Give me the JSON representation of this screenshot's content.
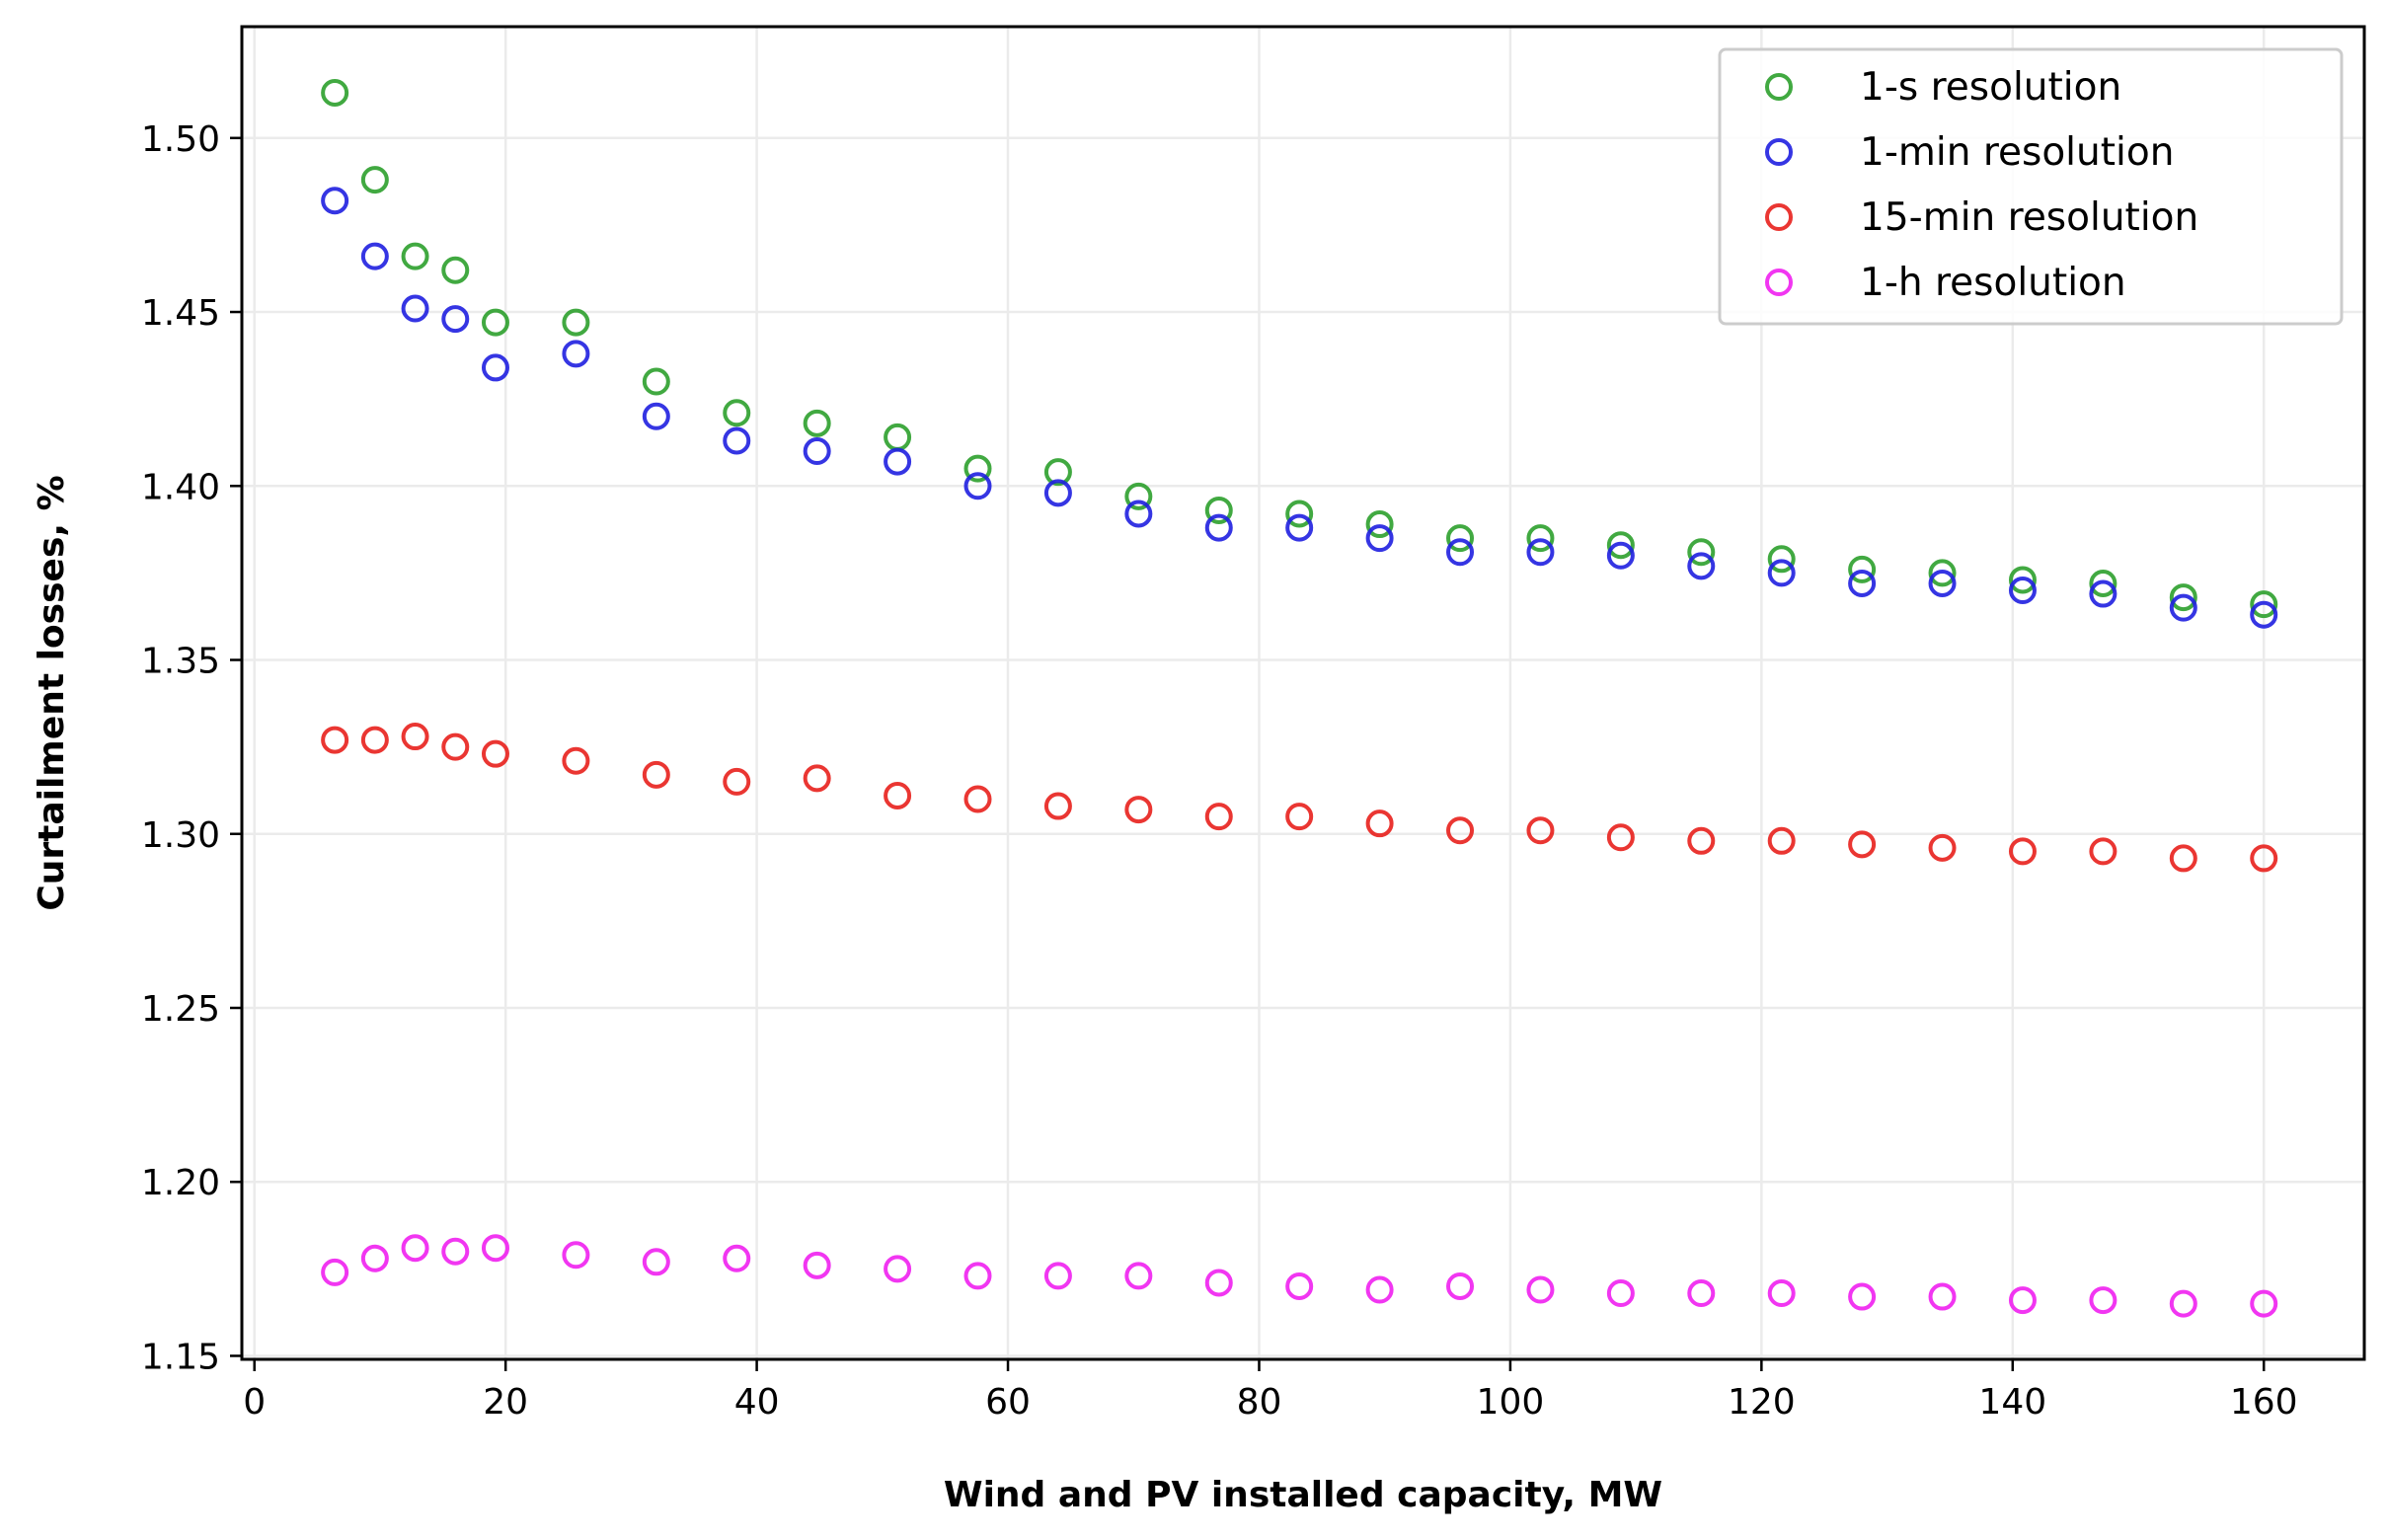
{
  "chart_data": {
    "type": "scatter",
    "title": "",
    "xlabel": "Wind and PV installed capacity, MW",
    "ylabel": "Curtailment losses, %",
    "xlim": [
      -1,
      168
    ],
    "ylim": [
      1.149,
      1.532
    ],
    "grid": true,
    "legend_position": "top-right",
    "xticks": [
      0,
      20,
      40,
      60,
      80,
      100,
      120,
      140,
      160
    ],
    "xtick_labels": [
      "0",
      "20",
      "40",
      "60",
      "80",
      "100",
      "120",
      "140",
      "160"
    ],
    "yticks": [
      1.15,
      1.2,
      1.25,
      1.3,
      1.35,
      1.4,
      1.45,
      1.5
    ],
    "ytick_labels": [
      "1.15",
      "1.20",
      "1.25",
      "1.30",
      "1.35",
      "1.40",
      "1.45",
      "1.50"
    ],
    "x": [
      6.4,
      9.6,
      12.8,
      16,
      19.2,
      25.6,
      32,
      38.4,
      44.8,
      51.2,
      57.6,
      64,
      70.4,
      76.8,
      83.2,
      89.6,
      96,
      102.4,
      108.8,
      115.2,
      121.6,
      128,
      134.4,
      140.8,
      147.2,
      153.6,
      160
    ],
    "series": [
      {
        "name": "1-s resolution",
        "color": "#2ca02c",
        "values": [
          1.513,
          1.488,
          1.466,
          1.462,
          1.447,
          1.447,
          1.43,
          1.421,
          1.418,
          1.414,
          1.405,
          1.404,
          1.397,
          1.393,
          1.392,
          1.389,
          1.385,
          1.385,
          1.383,
          1.381,
          1.379,
          1.376,
          1.375,
          1.373,
          1.372,
          1.368,
          1.366
        ]
      },
      {
        "name": "1-min resolution",
        "color": "#1f1fe0",
        "values": [
          1.482,
          1.466,
          1.451,
          1.448,
          1.434,
          1.438,
          1.42,
          1.413,
          1.41,
          1.407,
          1.4,
          1.398,
          1.392,
          1.388,
          1.388,
          1.385,
          1.381,
          1.381,
          1.38,
          1.377,
          1.375,
          1.372,
          1.372,
          1.37,
          1.369,
          1.365,
          1.363
        ]
      },
      {
        "name": "15-min resolution",
        "color": "#e8201c",
        "values": [
          1.327,
          1.327,
          1.328,
          1.325,
          1.323,
          1.321,
          1.317,
          1.315,
          1.316,
          1.311,
          1.31,
          1.308,
          1.307,
          1.305,
          1.305,
          1.303,
          1.301,
          1.301,
          1.299,
          1.298,
          1.298,
          1.297,
          1.296,
          1.295,
          1.295,
          1.293,
          1.293
        ]
      },
      {
        "name": "1-h resolution",
        "color": "#f020f0",
        "values": [
          1.174,
          1.178,
          1.181,
          1.18,
          1.181,
          1.179,
          1.177,
          1.178,
          1.176,
          1.175,
          1.173,
          1.173,
          1.173,
          1.171,
          1.17,
          1.169,
          1.17,
          1.169,
          1.168,
          1.168,
          1.168,
          1.167,
          1.167,
          1.166,
          1.166,
          1.165,
          1.165
        ]
      }
    ]
  }
}
